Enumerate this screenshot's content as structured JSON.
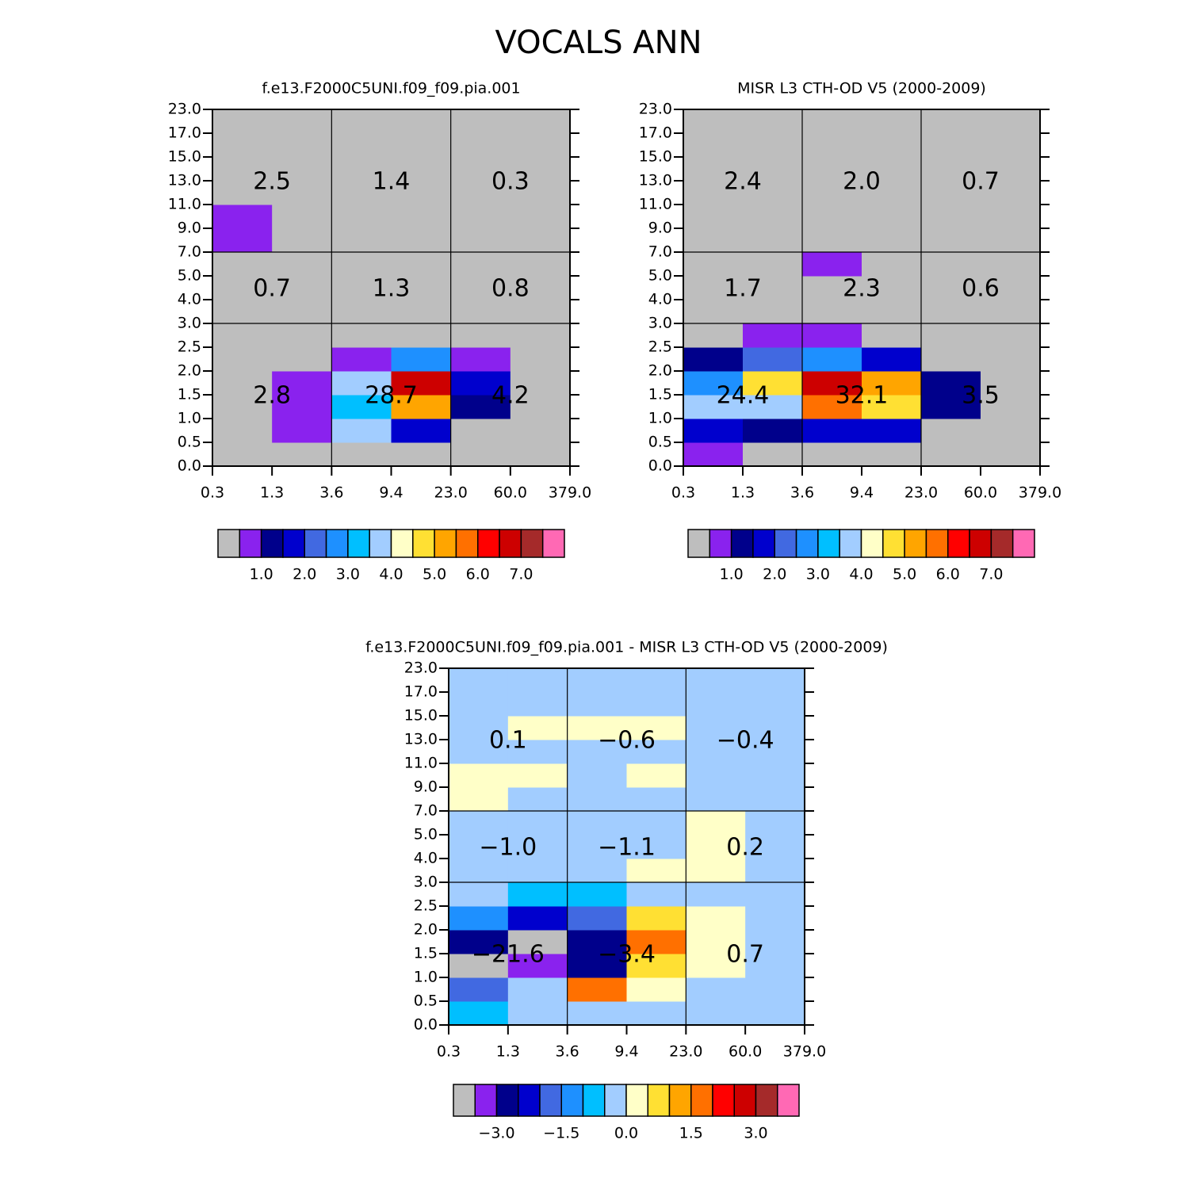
{
  "title": "VOCALS ANN",
  "chart_data": [
    {
      "type": "heatmap",
      "title": "f.e13.F2000C5UNI.f09_f09.pia.001",
      "xticks": [
        0.3,
        1.3,
        3.6,
        9.4,
        {
          "value": 23,
          "label": "23.0"
        },
        {
          "value": 60,
          "label": "60.0"
        },
        {
          "value": 379,
          "label": "379.0"
        }
      ],
      "yticks": [
        {
          "value": 0,
          "label": "0.0"
        },
        0.5,
        {
          "value": 1,
          "label": "1.0"
        },
        1.5,
        {
          "value": 2,
          "label": "2.0"
        },
        2.5,
        {
          "value": 3,
          "label": "3.0"
        },
        {
          "value": 4,
          "label": "4.0"
        },
        {
          "value": 5,
          "label": "5.0"
        },
        {
          "value": 7,
          "label": "7.0"
        },
        {
          "value": 9,
          "label": "9.0"
        },
        {
          "value": 11,
          "label": "11.0"
        },
        {
          "value": 13,
          "label": "13.0"
        },
        {
          "value": 15,
          "label": "15.0"
        },
        {
          "value": 17,
          "label": "17.0"
        },
        {
          "value": 23,
          "label": "23.0"
        }
      ],
      "z": [
        [
          0.2,
          0.2,
          0.2,
          0.2,
          0.2,
          0.2
        ],
        [
          0.2,
          0.7,
          3.7,
          1.7,
          0.2,
          0.2
        ],
        [
          0.2,
          0.7,
          3.2,
          5.2,
          1.2,
          0.2
        ],
        [
          0.2,
          0.7,
          3.7,
          6.7,
          1.7,
          0.2
        ],
        [
          0.2,
          0.2,
          0.7,
          2.7,
          0.7,
          0.2
        ],
        [
          0.2,
          0.2,
          0.2,
          0.2,
          0.2,
          0.2
        ],
        [
          0.2,
          0.2,
          0.2,
          0.2,
          0.2,
          0.2
        ],
        [
          0.2,
          0.2,
          0.2,
          0.2,
          0.2,
          0.2
        ],
        [
          0.2,
          0.2,
          0.2,
          0.2,
          0.2,
          0.2
        ],
        [
          0.7,
          0.2,
          0.2,
          0.2,
          0.2,
          0.2
        ],
        [
          0.7,
          0.2,
          0.2,
          0.2,
          0.2,
          0.2
        ],
        [
          0.2,
          0.2,
          0.2,
          0.2,
          0.2,
          0.2
        ],
        [
          0.2,
          0.2,
          0.2,
          0.2,
          0.2,
          0.2
        ],
        [
          0.2,
          0.2,
          0.2,
          0.2,
          0.2,
          0.2
        ],
        [
          0.2,
          0.2,
          0.2,
          0.2,
          0.2,
          0.2
        ]
      ],
      "summary": {
        "values": [
          [
            2.8,
            28.7,
            4.2
          ],
          [
            0.7,
            1.3,
            0.8
          ],
          [
            2.5,
            1.4,
            0.3
          ]
        ],
        "value_labels": [
          [
            "2.8",
            "28.7",
            "4.2"
          ],
          [
            "0.7",
            "1.3",
            "0.8"
          ],
          [
            "2.5",
            "1.4",
            "0.3"
          ]
        ]
      },
      "colorbar": {
        "colors": [
          "#bebebe",
          "#8a22ee",
          "#00008b",
          "#0000cd",
          "#4169e1",
          "#1e90ff",
          "#00bfff",
          "#a2cdff",
          "#ffffc8",
          "#ffe033",
          "#ffa500",
          "#ff7000",
          "#ff0000",
          "#cd0000",
          "#a52a2a",
          "#ff69b4"
        ],
        "levels": [
          0.5,
          1,
          1.5,
          2,
          2.5,
          3,
          3.5,
          4,
          4.5,
          5,
          5.5,
          6,
          6.5,
          7,
          7.5
        ],
        "ticks": [
          {
            "value": 1,
            "label": "1.0"
          },
          {
            "value": 2,
            "label": "2.0"
          },
          {
            "value": 3,
            "label": "3.0"
          },
          {
            "value": 4,
            "label": "4.0"
          },
          {
            "value": 5,
            "label": "5.0"
          },
          {
            "value": 6,
            "label": "6.0"
          },
          {
            "value": 7,
            "label": "7.0"
          }
        ]
      }
    },
    {
      "type": "heatmap",
      "title": "MISR L3 CTH-OD V5 (2000-2009)",
      "xticks": [
        0.3,
        1.3,
        3.6,
        9.4,
        {
          "value": 23,
          "label": "23.0"
        },
        {
          "value": 60,
          "label": "60.0"
        },
        {
          "value": 379,
          "label": "379.0"
        }
      ],
      "yticks": [
        {
          "value": 0,
          "label": "0.0"
        },
        0.5,
        {
          "value": 1,
          "label": "1.0"
        },
        1.5,
        {
          "value": 2,
          "label": "2.0"
        },
        2.5,
        {
          "value": 3,
          "label": "3.0"
        },
        {
          "value": 4,
          "label": "4.0"
        },
        {
          "value": 5,
          "label": "5.0"
        },
        {
          "value": 7,
          "label": "7.0"
        },
        {
          "value": 9,
          "label": "9.0"
        },
        {
          "value": 11,
          "label": "11.0"
        },
        {
          "value": 13,
          "label": "13.0"
        },
        {
          "value": 15,
          "label": "15.0"
        },
        {
          "value": 17,
          "label": "17.0"
        },
        {
          "value": 23,
          "label": "23.0"
        }
      ],
      "z": [
        [
          0.7,
          0.2,
          0.2,
          0.2,
          0.2,
          0.2
        ],
        [
          1.7,
          1.2,
          1.7,
          1.7,
          0.2,
          0.2
        ],
        [
          3.7,
          3.7,
          5.7,
          4.7,
          1.2,
          0.2
        ],
        [
          2.7,
          4.7,
          6.7,
          5.2,
          1.2,
          0.2
        ],
        [
          1.2,
          2.2,
          2.7,
          1.7,
          0.2,
          0.2
        ],
        [
          0.2,
          0.7,
          0.7,
          0.2,
          0.2,
          0.2
        ],
        [
          0.2,
          0.2,
          0.2,
          0.2,
          0.2,
          0.2
        ],
        [
          0.2,
          0.2,
          0.2,
          0.2,
          0.2,
          0.2
        ],
        [
          0.2,
          0.2,
          0.7,
          0.2,
          0.2,
          0.2
        ],
        [
          0.2,
          0.2,
          0.2,
          0.2,
          0.2,
          0.2
        ],
        [
          0.2,
          0.2,
          0.2,
          0.2,
          0.2,
          0.2
        ],
        [
          0.2,
          0.2,
          0.2,
          0.2,
          0.2,
          0.2
        ],
        [
          0.2,
          0.2,
          0.2,
          0.2,
          0.2,
          0.2
        ],
        [
          0.2,
          0.2,
          0.2,
          0.2,
          0.2,
          0.2
        ],
        [
          0.2,
          0.2,
          0.2,
          0.2,
          0.2,
          0.2
        ]
      ],
      "summary": {
        "values": [
          [
            24.4,
            32.1,
            3.5
          ],
          [
            1.7,
            2.3,
            0.6
          ],
          [
            2.4,
            2.0,
            0.7
          ]
        ],
        "value_labels": [
          [
            "24.4",
            "32.1",
            "3.5"
          ],
          [
            "1.7",
            "2.3",
            "0.6"
          ],
          [
            "2.4",
            "2.0",
            "0.7"
          ]
        ]
      },
      "colorbar": {
        "colors": [
          "#bebebe",
          "#8a22ee",
          "#00008b",
          "#0000cd",
          "#4169e1",
          "#1e90ff",
          "#00bfff",
          "#a2cdff",
          "#ffffc8",
          "#ffe033",
          "#ffa500",
          "#ff7000",
          "#ff0000",
          "#cd0000",
          "#a52a2a",
          "#ff69b4"
        ],
        "levels": [
          0.5,
          1,
          1.5,
          2,
          2.5,
          3,
          3.5,
          4,
          4.5,
          5,
          5.5,
          6,
          6.5,
          7,
          7.5
        ],
        "ticks": [
          {
            "value": 1,
            "label": "1.0"
          },
          {
            "value": 2,
            "label": "2.0"
          },
          {
            "value": 3,
            "label": "3.0"
          },
          {
            "value": 4,
            "label": "4.0"
          },
          {
            "value": 5,
            "label": "5.0"
          },
          {
            "value": 6,
            "label": "6.0"
          },
          {
            "value": 7,
            "label": "7.0"
          }
        ]
      }
    },
    {
      "type": "heatmap",
      "title": "f.e13.F2000C5UNI.f09_f09.pia.001 - MISR L3 CTH-OD V5 (2000-2009)",
      "xticks": [
        0.3,
        1.3,
        3.6,
        9.4,
        {
          "value": 23,
          "label": "23.0"
        },
        {
          "value": 60,
          "label": "60.0"
        },
        {
          "value": 379,
          "label": "379.0"
        }
      ],
      "yticks": [
        {
          "value": 0,
          "label": "0.0"
        },
        0.5,
        {
          "value": 1,
          "label": "1.0"
        },
        1.5,
        {
          "value": 2,
          "label": "2.0"
        },
        2.5,
        {
          "value": 3,
          "label": "3.0"
        },
        {
          "value": 4,
          "label": "4.0"
        },
        {
          "value": 5,
          "label": "5.0"
        },
        {
          "value": 7,
          "label": "7.0"
        },
        {
          "value": 9,
          "label": "9.0"
        },
        {
          "value": 11,
          "label": "11.0"
        },
        {
          "value": 13,
          "label": "13.0"
        },
        {
          "value": 15,
          "label": "15.0"
        },
        {
          "value": 17,
          "label": "17.0"
        },
        {
          "value": 23,
          "label": "23.0"
        }
      ],
      "z": [
        [
          -0.7,
          -0.2,
          -0.2,
          -0.2,
          -0.2,
          -0.2
        ],
        [
          -1.7,
          -0.2,
          1.7,
          0.2,
          -0.2,
          -0.2
        ],
        [
          -3.7,
          -3.2,
          -2.7,
          0.7,
          0.2,
          -0.2
        ],
        [
          -2.7,
          -3.7,
          -2.7,
          1.7,
          0.2,
          -0.2
        ],
        [
          -1.2,
          -2.2,
          -1.7,
          0.7,
          0.2,
          -0.2
        ],
        [
          -0.2,
          -0.7,
          -0.7,
          -0.2,
          -0.2,
          -0.2
        ],
        [
          -0.2,
          -0.2,
          -0.2,
          0.2,
          0.2,
          -0.2
        ],
        [
          -0.2,
          -0.2,
          -0.2,
          -0.2,
          0.2,
          -0.2
        ],
        [
          -0.2,
          -0.2,
          -0.2,
          -0.2,
          0.2,
          -0.2
        ],
        [
          0.2,
          -0.2,
          -0.2,
          -0.2,
          -0.2,
          -0.2
        ],
        [
          0.2,
          0.2,
          -0.2,
          0.2,
          -0.2,
          -0.2
        ],
        [
          -0.2,
          -0.2,
          -0.2,
          -0.2,
          -0.2,
          -0.2
        ],
        [
          -0.2,
          0.2,
          0.2,
          0.2,
          -0.2,
          -0.2
        ],
        [
          -0.2,
          -0.2,
          -0.2,
          -0.2,
          -0.2,
          -0.2
        ],
        [
          -0.2,
          -0.2,
          -0.2,
          -0.2,
          -0.2,
          -0.2
        ]
      ],
      "summary": {
        "values": [
          [
            -21.6,
            -3.4,
            0.7
          ],
          [
            -1.0,
            -1.1,
            0.2
          ],
          [
            0.1,
            -0.6,
            -0.4
          ]
        ],
        "value_labels": [
          [
            "−21.6",
            "−3.4",
            "0.7"
          ],
          [
            "−1.0",
            "−1.1",
            "0.2"
          ],
          [
            "0.1",
            "−0.6",
            "−0.4"
          ]
        ]
      },
      "colorbar": {
        "colors": [
          "#bebebe",
          "#8a22ee",
          "#00008b",
          "#0000cd",
          "#4169e1",
          "#1e90ff",
          "#00bfff",
          "#a2cdff",
          "#ffffc8",
          "#ffe033",
          "#ffa500",
          "#ff7000",
          "#ff0000",
          "#cd0000",
          "#a52a2a",
          "#ff69b4"
        ],
        "levels": [
          -3.5,
          -3,
          -2.5,
          -2,
          -1.5,
          -1,
          -0.5,
          0,
          0.5,
          1,
          1.5,
          2,
          2.5,
          3,
          3.5
        ],
        "ticks": [
          {
            "value": -3,
            "label": "−3.0"
          },
          {
            "value": -1.5,
            "label": "−1.5"
          },
          {
            "value": 0,
            "label": "0.0"
          },
          {
            "value": 1.5,
            "label": "1.5"
          },
          {
            "value": 3,
            "label": "3.0"
          }
        ]
      }
    }
  ]
}
